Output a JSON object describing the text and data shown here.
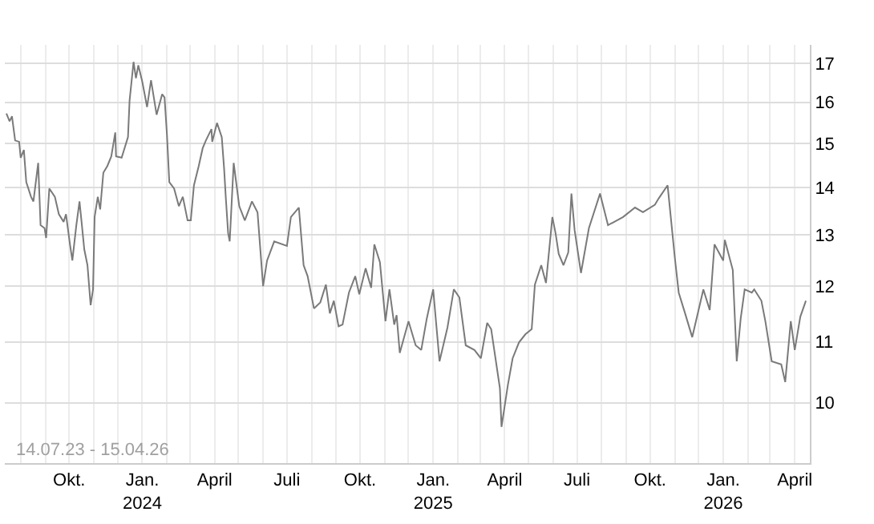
{
  "chart_data": {
    "type": "line",
    "log": "y",
    "grid": true,
    "marker": "none",
    "line_style": "solid",
    "annotations": [
      "14.07.23 - 15.04.26"
    ],
    "xlim": [
      "2023-07-12",
      "2026-04-20"
    ],
    "ylim": [
      9.1,
      17.5
    ],
    "yticks": [
      10,
      11,
      12,
      13,
      14,
      15,
      16,
      17
    ],
    "xticks": [
      {
        "value": "2023-08-01",
        "label": null
      },
      {
        "value": "2023-09-01",
        "label": null
      },
      {
        "value": "2023-10-01",
        "label": "Okt."
      },
      {
        "value": "2023-11-01",
        "label": null
      },
      {
        "value": "2023-12-01",
        "label": null
      },
      {
        "value": "2024-01-01",
        "label": "Jan.\n2024"
      },
      {
        "value": "2024-02-01",
        "label": null
      },
      {
        "value": "2024-03-01",
        "label": null
      },
      {
        "value": "2024-04-01",
        "label": "April"
      },
      {
        "value": "2024-05-01",
        "label": null
      },
      {
        "value": "2024-06-01",
        "label": null
      },
      {
        "value": "2024-07-01",
        "label": "Juli"
      },
      {
        "value": "2024-08-01",
        "label": null
      },
      {
        "value": "2024-09-01",
        "label": null
      },
      {
        "value": "2024-10-01",
        "label": "Okt."
      },
      {
        "value": "2024-11-01",
        "label": null
      },
      {
        "value": "2024-12-01",
        "label": null
      },
      {
        "value": "2025-01-01",
        "label": "Jan.\n2025"
      },
      {
        "value": "2025-02-01",
        "label": null
      },
      {
        "value": "2025-03-01",
        "label": null
      },
      {
        "value": "2025-04-01",
        "label": "April"
      },
      {
        "value": "2025-05-01",
        "label": null
      },
      {
        "value": "2025-06-01",
        "label": null
      },
      {
        "value": "2025-07-01",
        "label": "Juli"
      },
      {
        "value": "2025-08-01",
        "label": null
      },
      {
        "value": "2025-09-01",
        "label": null
      },
      {
        "value": "2025-10-01",
        "label": "Okt."
      },
      {
        "value": "2025-11-01",
        "label": null
      },
      {
        "value": "2025-12-01",
        "label": null
      },
      {
        "value": "2026-01-01",
        "label": "Jan.\n2026"
      },
      {
        "value": "2026-02-01",
        "label": null
      },
      {
        "value": "2026-03-01",
        "label": null
      },
      {
        "value": "2026-04-01",
        "label": "April"
      }
    ],
    "series": [
      {
        "color": "#7a7a7a",
        "x": [
          "2023-07-14",
          "2023-07-18",
          "2023-07-21",
          "2023-07-25",
          "2023-07-30",
          "2023-08-01",
          "2023-08-05",
          "2023-08-08",
          "2023-08-14",
          "2023-08-17",
          "2023-08-23",
          "2023-08-26",
          "2023-08-31",
          "2023-09-02",
          "2023-09-06",
          "2023-09-13",
          "2023-09-18",
          "2023-09-24",
          "2023-09-27",
          "2023-10-02",
          "2023-10-05",
          "2023-10-10",
          "2023-10-14",
          "2023-10-17",
          "2023-10-20",
          "2023-10-24",
          "2023-10-28",
          "2023-10-31",
          "2023-11-02",
          "2023-11-06",
          "2023-11-09",
          "2023-11-13",
          "2023-11-18",
          "2023-11-23",
          "2023-11-28",
          "2023-11-29",
          "2023-12-06",
          "2023-12-14",
          "2023-12-16",
          "2023-12-21",
          "2023-12-24",
          "2023-12-27",
          "2024-01-01",
          "2024-01-07",
          "2024-01-12",
          "2024-01-19",
          "2024-01-26",
          "2024-01-29",
          "2024-02-01",
          "2024-02-04",
          "2024-02-10",
          "2024-02-16",
          "2024-02-21",
          "2024-02-27",
          "2024-03-02",
          "2024-03-06",
          "2024-03-12",
          "2024-03-17",
          "2024-03-21",
          "2024-03-28",
          "2024-03-29",
          "2024-04-04",
          "2024-04-10",
          "2024-04-13",
          "2024-04-15",
          "2024-04-18",
          "2024-04-20",
          "2024-04-25",
          "2024-05-02",
          "2024-05-09",
          "2024-05-18",
          "2024-05-25",
          "2024-06-01",
          "2024-06-06",
          "2024-06-15",
          "2024-07-01",
          "2024-07-06",
          "2024-07-16",
          "2024-07-22",
          "2024-07-27",
          "2024-08-04",
          "2024-08-12",
          "2024-08-19",
          "2024-08-24",
          "2024-08-29",
          "2024-09-04",
          "2024-09-09",
          "2024-09-17",
          "2024-09-25",
          "2024-09-30",
          "2024-10-08",
          "2024-10-15",
          "2024-10-19",
          "2024-10-26",
          "2024-11-02",
          "2024-11-07",
          "2024-11-13",
          "2024-11-16",
          "2024-11-20",
          "2024-12-01",
          "2024-12-10",
          "2024-12-17",
          "2024-12-24",
          "2025-01-01",
          "2025-01-09",
          "2025-01-19",
          "2025-01-27",
          "2025-02-03",
          "2025-02-11",
          "2025-02-22",
          "2025-03-02",
          "2025-03-10",
          "2025-03-15",
          "2025-03-26",
          "2025-03-28",
          "2025-04-05",
          "2025-04-11",
          "2025-04-19",
          "2025-04-27",
          "2025-05-05",
          "2025-05-09",
          "2025-05-17",
          "2025-05-23",
          "2025-05-31",
          "2025-06-04",
          "2025-06-08",
          "2025-06-14",
          "2025-06-20",
          "2025-06-24",
          "2025-06-28",
          "2025-07-06",
          "2025-07-16",
          "2025-07-30",
          "2025-08-09",
          "2025-08-28",
          "2025-09-12",
          "2025-09-22",
          "2025-10-07",
          "2025-10-12",
          "2025-10-23",
          "2025-11-01",
          "2025-11-06",
          "2025-11-14",
          "2025-11-23",
          "2025-12-07",
          "2025-12-15",
          "2025-12-21",
          "2026-01-01",
          "2026-01-03",
          "2026-01-13",
          "2026-01-18",
          "2026-01-23",
          "2026-01-28",
          "2026-02-06",
          "2026-02-09",
          "2026-02-18",
          "2026-02-23",
          "2026-03-03",
          "2026-03-15",
          "2026-03-20",
          "2026-03-27",
          "2026-04-01",
          "2026-04-08",
          "2026-04-15"
        ],
        "values": [
          15.72,
          15.53,
          15.65,
          15.07,
          15.04,
          14.67,
          14.85,
          14.12,
          13.8,
          13.7,
          14.55,
          13.2,
          13.14,
          12.94,
          13.98,
          13.8,
          13.43,
          13.27,
          13.43,
          12.81,
          12.49,
          13.2,
          13.7,
          13.2,
          12.71,
          12.4,
          11.65,
          11.94,
          13.37,
          13.8,
          13.53,
          14.33,
          14.48,
          14.7,
          15.26,
          14.7,
          14.67,
          15.15,
          16.04,
          17.04,
          16.61,
          16.95,
          16.52,
          15.88,
          16.56,
          15.69,
          16.2,
          16.12,
          15.22,
          14.12,
          13.98,
          13.6,
          13.8,
          13.3,
          13.3,
          14.05,
          14.48,
          14.89,
          15.07,
          15.34,
          15.04,
          15.49,
          15.15,
          14.41,
          13.8,
          13.04,
          12.87,
          14.55,
          13.6,
          13.3,
          13.7,
          13.47,
          12.0,
          12.49,
          12.87,
          12.78,
          13.37,
          13.57,
          12.4,
          12.19,
          11.59,
          11.7,
          12.03,
          11.5,
          11.73,
          11.27,
          11.3,
          11.88,
          12.19,
          11.85,
          12.34,
          11.97,
          12.81,
          12.46,
          11.36,
          11.94,
          11.3,
          11.47,
          10.81,
          11.36,
          10.94,
          10.86,
          11.41,
          11.94,
          10.67,
          11.25,
          11.94,
          11.79,
          10.94,
          10.86,
          10.72,
          11.33,
          11.22,
          10.23,
          9.63,
          10.28,
          10.72,
          10.99,
          11.13,
          11.22,
          12.03,
          12.4,
          12.06,
          13.37,
          13.04,
          12.62,
          12.4,
          12.65,
          13.87,
          13.1,
          12.25,
          13.14,
          13.87,
          13.2,
          13.37,
          13.57,
          13.47,
          13.63,
          13.77,
          14.05,
          12.56,
          11.88,
          11.5,
          11.08,
          11.94,
          11.56,
          12.81,
          12.49,
          12.9,
          12.31,
          10.67,
          11.41,
          11.94,
          11.88,
          11.94,
          11.73,
          11.36,
          10.67,
          10.62,
          10.33,
          11.36,
          10.86,
          11.44,
          11.73
        ]
      }
    ]
  }
}
